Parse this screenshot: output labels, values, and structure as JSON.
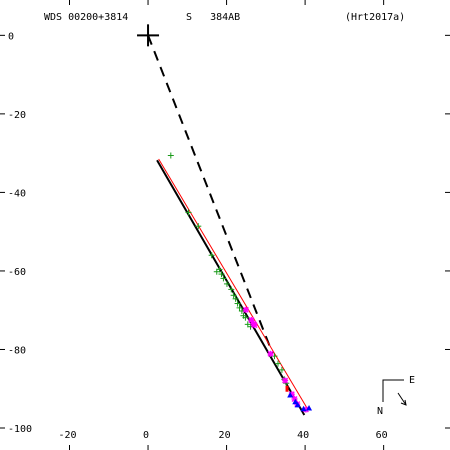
{
  "header": {
    "wds": "WDS 00200+3814",
    "disc": "S   384AB",
    "ref": "(Hrt2017a)"
  },
  "compass": {
    "north": "N",
    "east": "E"
  },
  "chart_data": {
    "type": "scatter",
    "x_ticks": [
      -20,
      0,
      20,
      40,
      60
    ],
    "y_ticks": [
      0,
      -20,
      -40,
      -60,
      -80,
      -100
    ],
    "xlim": [
      -37.7,
      76.9
    ],
    "ylim": [
      -105.6,
      9.0
    ],
    "primary": {
      "x": 0,
      "y": 0
    },
    "series": [
      {
        "marker": "plus",
        "color": "#1a9a1a",
        "points": [
          [
            5.8,
            -30.6
          ],
          [
            10.3,
            -45.1
          ],
          [
            12.8,
            -48.6
          ],
          [
            16.2,
            -56.0
          ],
          [
            17.5,
            -60.2
          ],
          [
            18.2,
            -59.6
          ],
          [
            18.7,
            -60.8
          ],
          [
            19.2,
            -61.9
          ],
          [
            20.1,
            -63.3
          ],
          [
            21.2,
            -64.7
          ],
          [
            21.8,
            -66.2
          ],
          [
            22.3,
            -67.1
          ],
          [
            22.8,
            -68.3
          ],
          [
            23.3,
            -69.4
          ],
          [
            23.9,
            -70.2
          ],
          [
            24.3,
            -71.4
          ],
          [
            24.8,
            -71.9
          ],
          [
            25.4,
            -73.6
          ],
          [
            26.1,
            -74.2
          ],
          [
            32.2,
            -81.7
          ],
          [
            33.1,
            -83.6
          ],
          [
            34.1,
            -85.2
          ],
          [
            34.7,
            -87.6
          ],
          [
            35.2,
            -88.6
          ]
        ]
      },
      {
        "marker": "star",
        "color": "#ff00ff",
        "points": [
          [
            24.9,
            -69.9
          ],
          [
            26.3,
            -72.5
          ],
          [
            26.8,
            -73.4
          ],
          [
            27.1,
            -73.8
          ],
          [
            31.2,
            -81.1
          ],
          [
            34.9,
            -87.9
          ],
          [
            36.6,
            -91.4
          ],
          [
            37.3,
            -92.6
          ],
          [
            38.0,
            -93.9
          ],
          [
            40.2,
            -95.3
          ]
        ]
      },
      {
        "marker": "triangle",
        "color": "#0000ff",
        "points": [
          [
            36.2,
            -91.6
          ],
          [
            37.5,
            -93.3
          ],
          [
            38.1,
            -94.1
          ],
          [
            39.6,
            -95.1
          ],
          [
            41.0,
            -94.9
          ]
        ]
      },
      {
        "marker": "dot",
        "color": "#ff0000",
        "points": [
          [
            35.4,
            -90.0
          ]
        ]
      }
    ],
    "orbit_fit": {
      "from": [
        2.3,
        -31.8
      ],
      "to": [
        39.8,
        -96.7
      ],
      "color": "#000000"
    },
    "linear_fit": {
      "from": [
        2.7,
        -31.5
      ],
      "to": [
        40.6,
        -95.1
      ],
      "color": "#ff0000"
    },
    "periastron_line": {
      "from": [
        0,
        0
      ],
      "to": [
        31.7,
        -81.0
      ],
      "dash": true
    }
  }
}
